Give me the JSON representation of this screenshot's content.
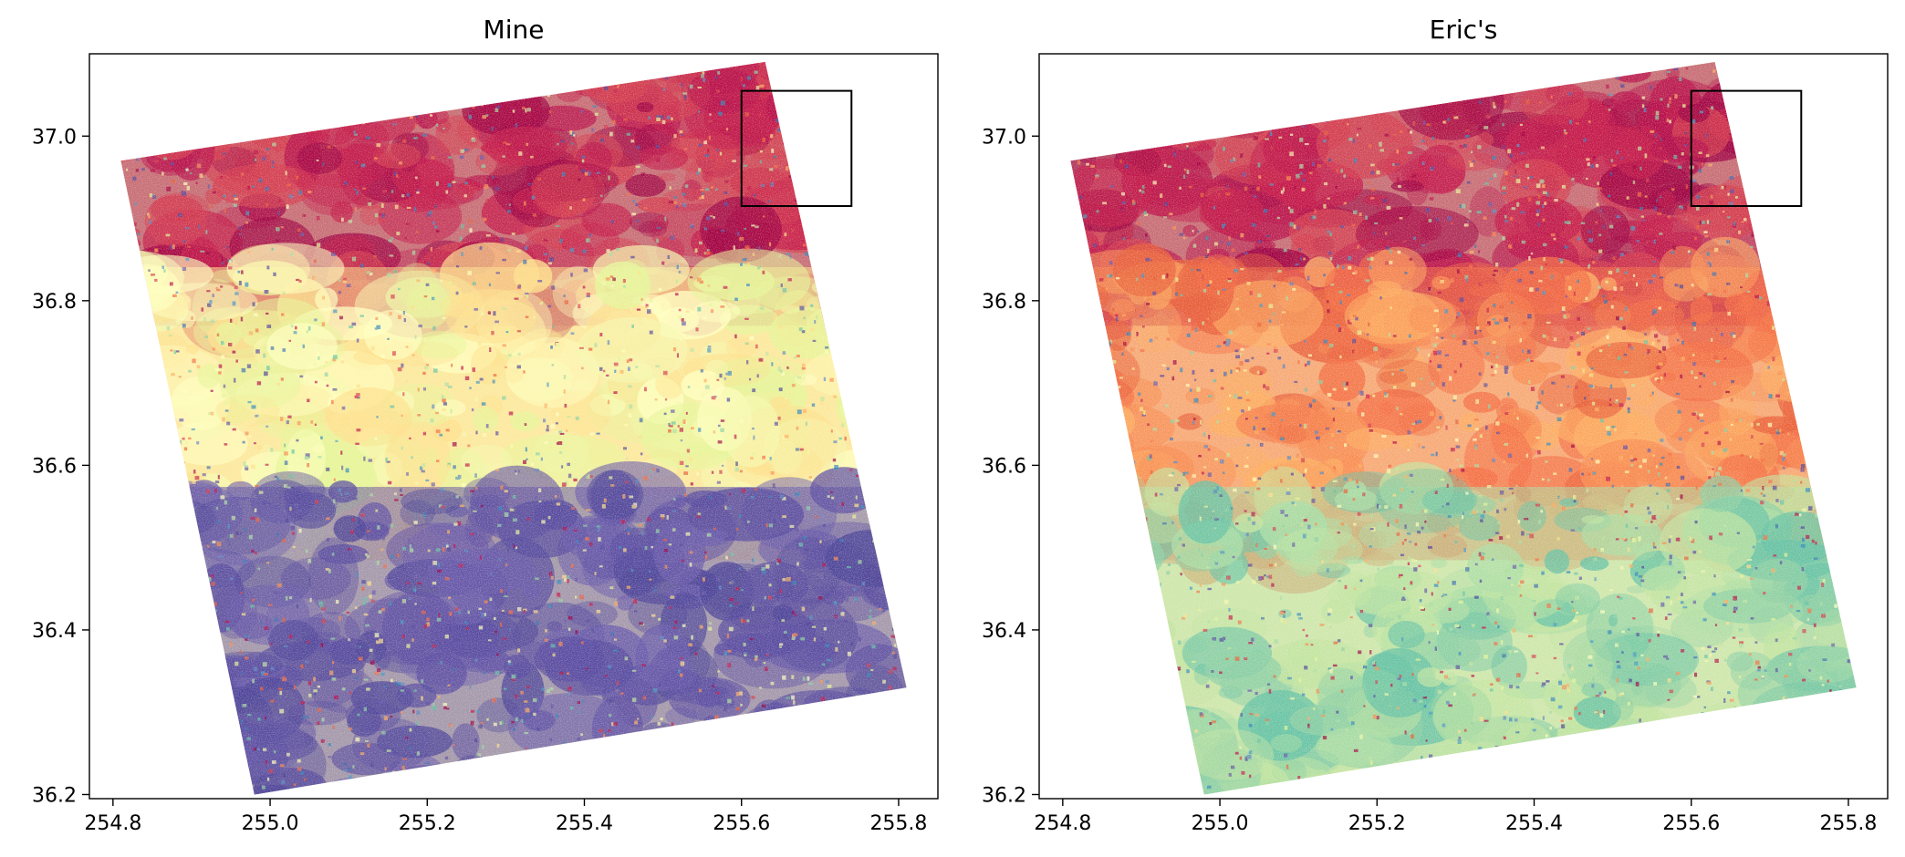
{
  "chart_data": [
    {
      "type": "heatmap",
      "title": "Mine",
      "xlabel": "",
      "ylabel": "",
      "xlim": [
        254.77,
        255.85
      ],
      "ylim": [
        36.195,
        37.1
      ],
      "x_ticks": [
        254.8,
        255.0,
        255.2,
        255.4,
        255.6,
        255.8
      ],
      "x_tick_labels": [
        "254.8",
        "255.0",
        "255.2",
        "255.4",
        "255.6",
        "255.8"
      ],
      "y_ticks": [
        36.2,
        36.4,
        36.6,
        36.8,
        37.0
      ],
      "y_tick_labels": [
        "36.2",
        "36.4",
        "36.6",
        "36.8",
        "37.0"
      ],
      "colormap": "Spectral",
      "footprint": [
        [
          254.81,
          36.97
        ],
        [
          255.63,
          37.09
        ],
        [
          255.81,
          36.33
        ],
        [
          254.98,
          36.2
        ]
      ],
      "highlight_box": {
        "x0": 255.6,
        "x1": 255.74,
        "y0": 36.915,
        "y1": 37.055
      },
      "pattern": {
        "north": "red",
        "middle": "yellow",
        "south": "purple"
      }
    },
    {
      "type": "heatmap",
      "title": "Eric's",
      "xlabel": "",
      "ylabel": "",
      "xlim": [
        254.77,
        255.85
      ],
      "ylim": [
        36.195,
        37.1
      ],
      "x_ticks": [
        254.8,
        255.0,
        255.2,
        255.4,
        255.6,
        255.8
      ],
      "x_tick_labels": [
        "254.8",
        "255.0",
        "255.2",
        "255.4",
        "255.6",
        "255.8"
      ],
      "y_ticks": [
        36.2,
        36.4,
        36.6,
        36.8,
        37.0
      ],
      "y_tick_labels": [
        "36.2",
        "36.4",
        "36.6",
        "36.8",
        "37.0"
      ],
      "colormap": "Spectral",
      "footprint": [
        [
          254.81,
          36.97
        ],
        [
          255.63,
          37.09
        ],
        [
          255.81,
          36.33
        ],
        [
          254.98,
          36.2
        ]
      ],
      "highlight_box": {
        "x0": 255.6,
        "x1": 255.74,
        "y0": 36.915,
        "y1": 37.055
      },
      "pattern": {
        "north": "red",
        "middle": "orange",
        "south": "green"
      }
    }
  ]
}
